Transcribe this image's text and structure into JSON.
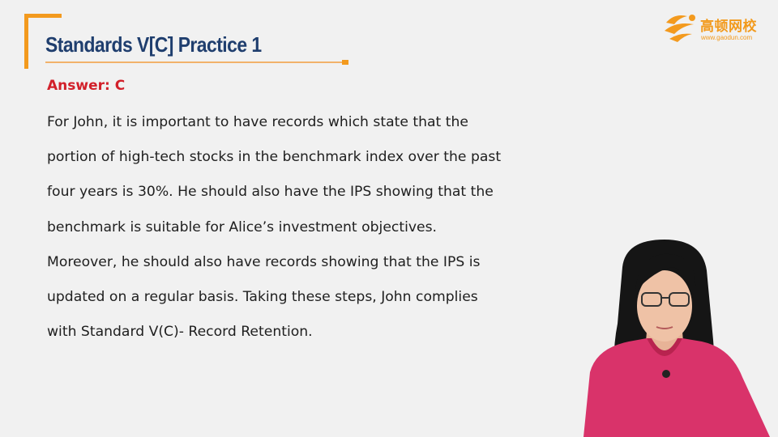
{
  "slide": {
    "title": "Standards V[C] Practice 1",
    "answer": "Answer: C",
    "body_lines": [
      "For John, it is important to have records which state that the",
      "portion of high-tech stocks in the benchmark index over the past",
      "four years is 30%. He should also have the IPS showing that the",
      "benchmark is suitable for Alice’s investment objectives.",
      "Moreover, he should also have records showing that the IPS is",
      "updated on a regular basis. Taking these steps, John complies",
      "with Standard V(C)- Record Retention."
    ]
  },
  "logo": {
    "name": "高顿网校",
    "url": "www.gaodun.com",
    "icon": "gaodun-logo-icon"
  },
  "colors": {
    "accent_orange": "#f39a1e",
    "title_navy": "#1f3e6e",
    "answer_red": "#d2202a",
    "body_text": "#202020",
    "background": "#f1f1f1",
    "presenter_top": "#d9336a"
  }
}
